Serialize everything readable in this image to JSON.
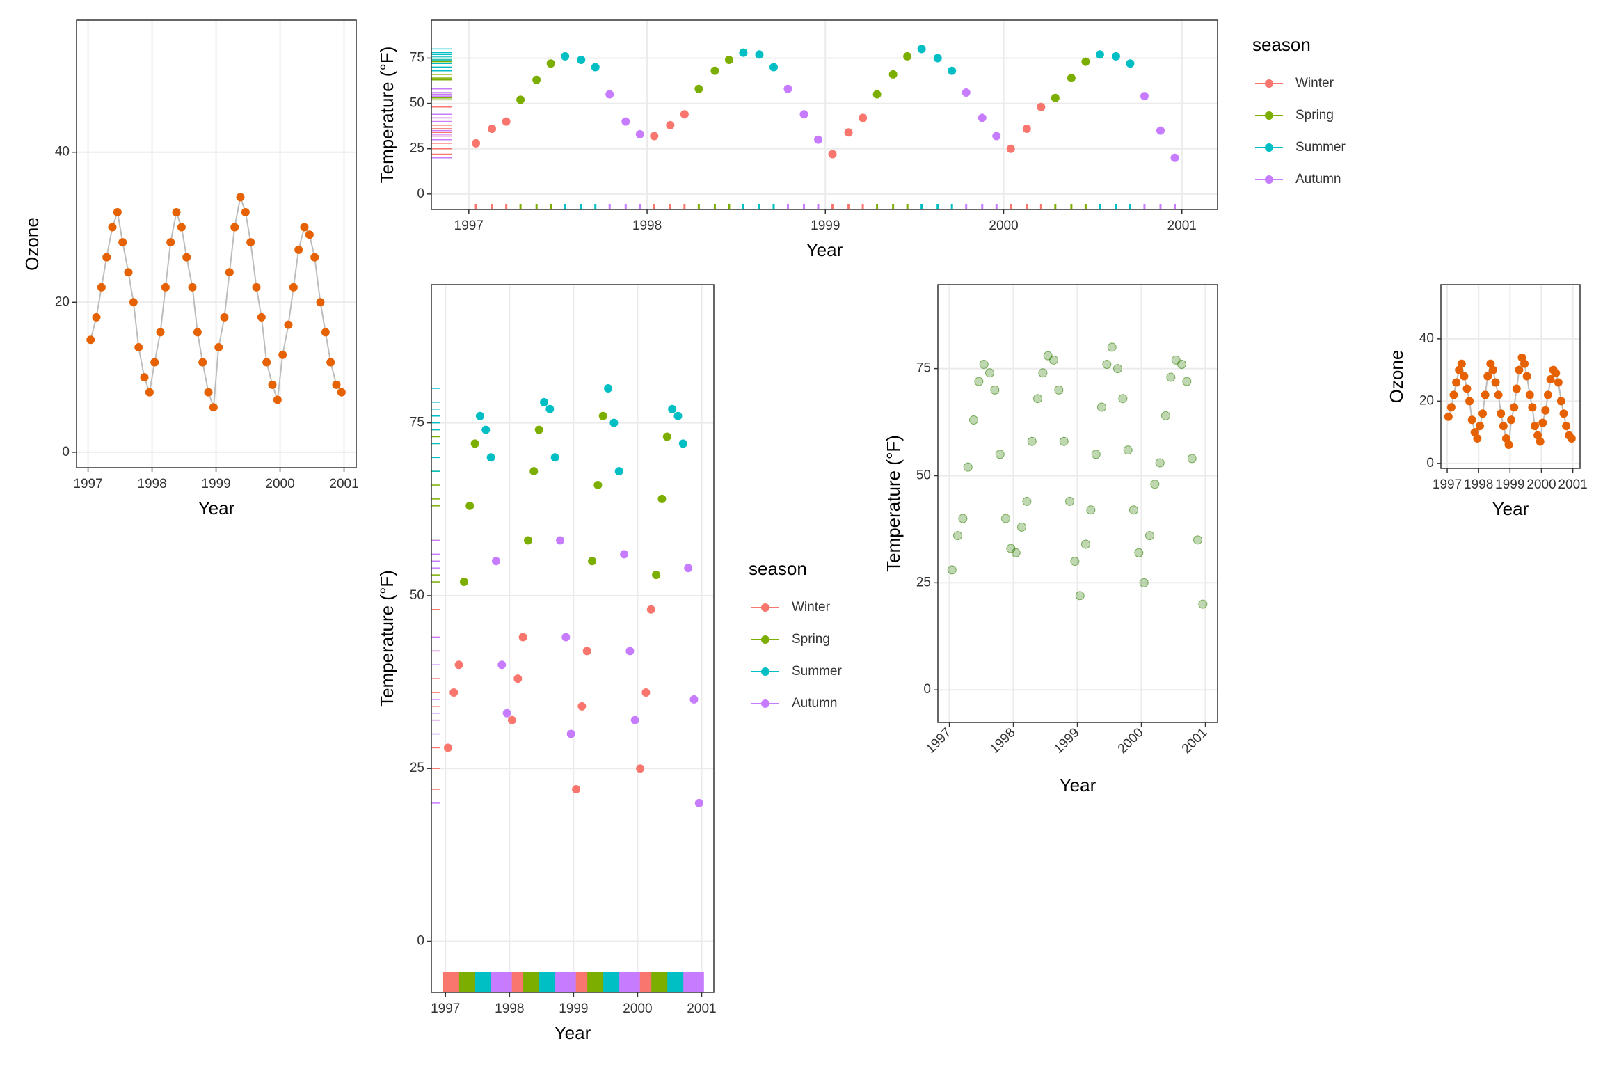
{
  "chart_data": [
    {
      "type": "line",
      "x_label": "Year",
      "y_label": "Ozone",
      "xlim": [
        1996.82,
        2001.19
      ],
      "xticks": [
        1997,
        1998,
        1999,
        2000,
        2001
      ],
      "ylim": [
        -2.05,
        57.6
      ],
      "yticks": [
        0,
        20,
        40
      ],
      "grid": true,
      "color": "#e66101",
      "line_color": "#bdbdbd",
      "x": [
        1997.04,
        1997.13,
        1997.21,
        1997.29,
        1997.38,
        1997.46,
        1997.54,
        1997.63,
        1997.71,
        1997.79,
        1997.88,
        1997.96,
        1998.04,
        1998.13,
        1998.21,
        1998.29,
        1998.38,
        1998.46,
        1998.54,
        1998.63,
        1998.71,
        1998.79,
        1998.88,
        1998.96,
        1999.04,
        1999.13,
        1999.21,
        1999.29,
        1999.38,
        1999.46,
        1999.54,
        1999.63,
        1999.71,
        1999.79,
        1999.88,
        1999.96,
        2000.04,
        2000.13,
        2000.21,
        2000.29,
        2000.38,
        2000.46,
        2000.54,
        2000.63,
        2000.71,
        2000.79,
        2000.88,
        2000.96
      ],
      "values": [
        15,
        18,
        22,
        26,
        30,
        32,
        28,
        24,
        20,
        14,
        10,
        8,
        12,
        16,
        22,
        28,
        32,
        30,
        26,
        22,
        16,
        12,
        8,
        6,
        14,
        18,
        24,
        30,
        34,
        32,
        28,
        22,
        18,
        12,
        9,
        7,
        13,
        17,
        22,
        27,
        30,
        29,
        26,
        20,
        16,
        12,
        9,
        8
      ]
    },
    {
      "type": "scatter",
      "x_label": "Year",
      "y_label": "Temperature (°F)",
      "xlim": [
        1996.79,
        2001.2
      ],
      "xticks": [
        1997,
        1998,
        1999,
        2000,
        2001
      ],
      "ylim": [
        -8.5,
        95.9
      ],
      "yticks": [
        0,
        25,
        50,
        75
      ],
      "grid": true,
      "rug": true,
      "legend": "right",
      "legend_title": "season",
      "series": [
        {
          "name": "Winter",
          "color": "#F8766D",
          "x": [
            1997.04,
            1997.13,
            1997.21,
            1998.04,
            1998.13,
            1998.21,
            1999.04,
            1999.13,
            1999.21,
            2000.04,
            2000.13,
            2000.21
          ],
          "values": [
            28,
            36,
            40,
            32,
            38,
            44,
            22,
            34,
            42,
            25,
            36,
            48
          ]
        },
        {
          "name": "Spring",
          "color": "#7CAE00",
          "x": [
            1997.29,
            1997.38,
            1997.46,
            1998.29,
            1998.38,
            1998.46,
            1999.29,
            1999.38,
            1999.46,
            2000.29,
            2000.38,
            2000.46
          ],
          "values": [
            52,
            63,
            72,
            58,
            68,
            74,
            55,
            66,
            76,
            53,
            64,
            73
          ]
        },
        {
          "name": "Summer",
          "color": "#00BFC4",
          "x": [
            1997.54,
            1997.63,
            1997.71,
            1998.54,
            1998.63,
            1998.71,
            1999.54,
            1999.63,
            1999.71,
            2000.54,
            2000.63,
            2000.71
          ],
          "values": [
            76,
            74,
            70,
            78,
            77,
            70,
            80,
            75,
            68,
            77,
            76,
            72
          ]
        },
        {
          "name": "Autumn",
          "color": "#C77CFF",
          "x": [
            1997.79,
            1997.88,
            1997.96,
            1998.79,
            1998.88,
            1998.96,
            1999.79,
            1999.88,
            1999.96,
            2000.79,
            2000.88,
            2000.96
          ],
          "values": [
            55,
            40,
            33,
            58,
            44,
            30,
            56,
            42,
            32,
            54,
            35,
            20
          ]
        }
      ]
    },
    {
      "type": "scatter",
      "x_label": "Year",
      "y_label": "Temperature (°F)",
      "xlim": [
        1996.78,
        2001.19
      ],
      "xticks": [
        1997,
        1998,
        1999,
        2000,
        2001
      ],
      "ylim": [
        -7.4,
        95
      ],
      "yticks": [
        0,
        25,
        50,
        75
      ],
      "grid": true,
      "rug": true,
      "legend": "right",
      "legend_title": "season",
      "series": [
        {
          "name": "Winter",
          "color": "#F8766D",
          "x": [
            1997.04,
            1997.13,
            1997.21,
            1998.04,
            1998.13,
            1998.21,
            1999.04,
            1999.13,
            1999.21,
            2000.04,
            2000.13,
            2000.21
          ],
          "values": [
            28,
            36,
            40,
            32,
            38,
            44,
            22,
            34,
            42,
            25,
            36,
            48
          ]
        },
        {
          "name": "Spring",
          "color": "#7CAE00",
          "x": [
            1997.29,
            1997.38,
            1997.46,
            1998.29,
            1998.38,
            1998.46,
            1999.29,
            1999.38,
            1999.46,
            2000.29,
            2000.38,
            2000.46
          ],
          "values": [
            52,
            63,
            72,
            58,
            68,
            74,
            55,
            66,
            76,
            53,
            64,
            73
          ]
        },
        {
          "name": "Summer",
          "color": "#00BFC4",
          "x": [
            1997.54,
            1997.63,
            1997.71,
            1998.54,
            1998.63,
            1998.71,
            1999.54,
            1999.63,
            1999.71,
            2000.54,
            2000.63,
            2000.71
          ],
          "values": [
            76,
            74,
            70,
            78,
            77,
            70,
            80,
            75,
            68,
            77,
            76,
            72
          ]
        },
        {
          "name": "Autumn",
          "color": "#C77CFF",
          "x": [
            1997.79,
            1997.88,
            1997.96,
            1998.79,
            1998.88,
            1998.96,
            1999.79,
            1999.88,
            1999.96,
            2000.79,
            2000.88,
            2000.96
          ],
          "values": [
            55,
            40,
            33,
            58,
            44,
            30,
            56,
            42,
            32,
            54,
            35,
            20
          ]
        }
      ]
    },
    {
      "type": "scatter",
      "x_label": "Year",
      "y_label": "Temperature (°F)",
      "xlim": [
        1996.82,
        2001.19
      ],
      "xticks": [
        1997,
        1998,
        1999,
        2000,
        2001
      ],
      "ylim": [
        -7.6,
        94.6
      ],
      "yticks": [
        0,
        25,
        50,
        75
      ],
      "grid": true,
      "color": "#2e7d00",
      "alpha": 0.3,
      "x": [
        1997.04,
        1997.13,
        1997.21,
        1997.29,
        1997.38,
        1997.46,
        1997.54,
        1997.63,
        1997.71,
        1997.79,
        1997.88,
        1997.96,
        1998.04,
        1998.13,
        1998.21,
        1998.29,
        1998.38,
        1998.46,
        1998.54,
        1998.63,
        1998.71,
        1998.79,
        1998.88,
        1998.96,
        1999.04,
        1999.13,
        1999.21,
        1999.29,
        1999.38,
        1999.46,
        1999.54,
        1999.63,
        1999.71,
        1999.79,
        1999.88,
        1999.96,
        2000.04,
        2000.13,
        2000.21,
        2000.29,
        2000.38,
        2000.46,
        2000.54,
        2000.63,
        2000.71,
        2000.79,
        2000.88,
        2000.96
      ],
      "values": [
        28,
        36,
        40,
        52,
        63,
        72,
        76,
        74,
        70,
        55,
        40,
        33,
        32,
        38,
        44,
        58,
        68,
        74,
        78,
        77,
        70,
        58,
        44,
        30,
        22,
        34,
        42,
        55,
        66,
        76,
        80,
        75,
        68,
        56,
        42,
        32,
        25,
        36,
        48,
        53,
        64,
        73,
        77,
        76,
        72,
        54,
        35,
        20
      ]
    },
    {
      "type": "line",
      "x_label": "Year",
      "y_label": "Ozone",
      "xlim": [
        1996.8,
        2001.23
      ],
      "xticks": [
        1997,
        1998,
        1999,
        2000,
        2001
      ],
      "ylim": [
        -1.6,
        57.4
      ],
      "yticks": [
        0,
        20,
        40
      ],
      "grid": true,
      "color": "#e66101",
      "line_color": "#bdbdbd",
      "x": [
        1997.04,
        1997.13,
        1997.21,
        1997.29,
        1997.38,
        1997.46,
        1997.54,
        1997.63,
        1997.71,
        1997.79,
        1997.88,
        1997.96,
        1998.04,
        1998.13,
        1998.21,
        1998.29,
        1998.38,
        1998.46,
        1998.54,
        1998.63,
        1998.71,
        1998.79,
        1998.88,
        1998.96,
        1999.04,
        1999.13,
        1999.21,
        1999.29,
        1999.38,
        1999.46,
        1999.54,
        1999.63,
        1999.71,
        1999.79,
        1999.88,
        1999.96,
        2000.04,
        2000.13,
        2000.21,
        2000.29,
        2000.38,
        2000.46,
        2000.54,
        2000.63,
        2000.71,
        2000.79,
        2000.88,
        2000.96
      ],
      "values": [
        15,
        18,
        22,
        26,
        30,
        32,
        28,
        24,
        20,
        14,
        10,
        8,
        12,
        16,
        22,
        28,
        32,
        30,
        26,
        22,
        16,
        12,
        8,
        6,
        14,
        18,
        24,
        30,
        34,
        32,
        28,
        22,
        18,
        12,
        9,
        7,
        13,
        17,
        22,
        27,
        30,
        29,
        26,
        20,
        16,
        12,
        9,
        8
      ]
    }
  ]
}
